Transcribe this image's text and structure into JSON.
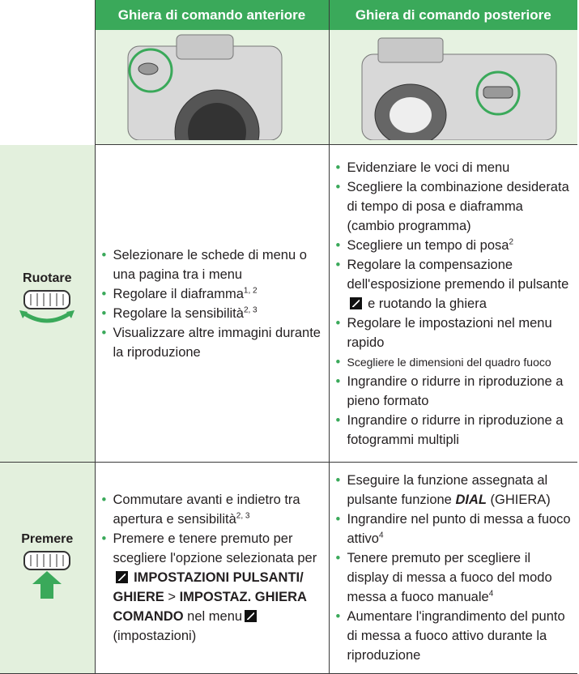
{
  "header": {
    "front": "Ghiera di comando anteriore",
    "rear": "Ghiera di comando posteriore"
  },
  "rows": [
    {
      "label": "Ruotare",
      "front": [
        [
          "Selezionare le schede di menu o una pagina tra i menu"
        ],
        [
          "Regolare il diaframma",
          {
            "text": "1, 2",
            "style": "sup"
          }
        ],
        [
          "Regolare la sensibilità",
          {
            "text": "2, 3",
            "style": "sup"
          }
        ],
        [
          "Visualizzare altre immagini durante la riproduzione"
        ]
      ],
      "rear": [
        [
          "Evidenziare le voci di menu"
        ],
        [
          "Scegliere la combinazione desiderata di tempo di posa e diaframma (cambio programma)"
        ],
        [
          "Scegliere un tempo di posa",
          {
            "text": "2",
            "style": "sup"
          }
        ],
        [
          "Regolare la compensazione dell'esposizione premendo il pulsante",
          {
            "style": "icon"
          },
          "e ruotando la ghiera"
        ],
        [
          "Regolare le impostazioni nel menu rapido"
        ],
        [
          {
            "text": "Scegliere le dimensioni del quadro fuoco",
            "style": "small"
          }
        ],
        [
          "Ingrandire o ridurre in riproduzione a pieno formato"
        ],
        [
          "Ingrandire o ridurre in riproduzione a fotogrammi multipli"
        ]
      ]
    },
    {
      "label": "Premere",
      "front": [
        [
          "Commutare avanti e indietro tra apertura e sensibilità",
          {
            "text": "2, 3",
            "style": "sup"
          }
        ],
        [
          "Premere e tenere premuto per scegliere l'opzione selezionata per",
          {
            "style": "icon"
          },
          {
            "text": "IMPOSTAZIONI PULSANTI/ GHIERE",
            "style": "b"
          },
          ">",
          {
            "text": "IMPOSTAZ. GHIERA COMANDO",
            "style": "b"
          },
          "nel menu",
          {
            "style": "icon"
          },
          "(impostazioni)"
        ]
      ],
      "rear": [
        [
          "Eseguire la funzione assegnata al pulsante funzione",
          {
            "text": "DIAL",
            "style": "i"
          },
          "(GHIERA)"
        ],
        [
          "Ingrandire nel punto di messa a fuoco attivo",
          {
            "text": "4",
            "style": "sup"
          }
        ],
        [
          "Tenere premuto per scegliere il display di messa a fuoco del modo messa a fuoco manuale",
          {
            "text": "4",
            "style": "sup"
          }
        ],
        [
          "Aumentare l'ingrandimento del punto di messa a fuoco attivo durante la riproduzione"
        ]
      ]
    }
  ]
}
